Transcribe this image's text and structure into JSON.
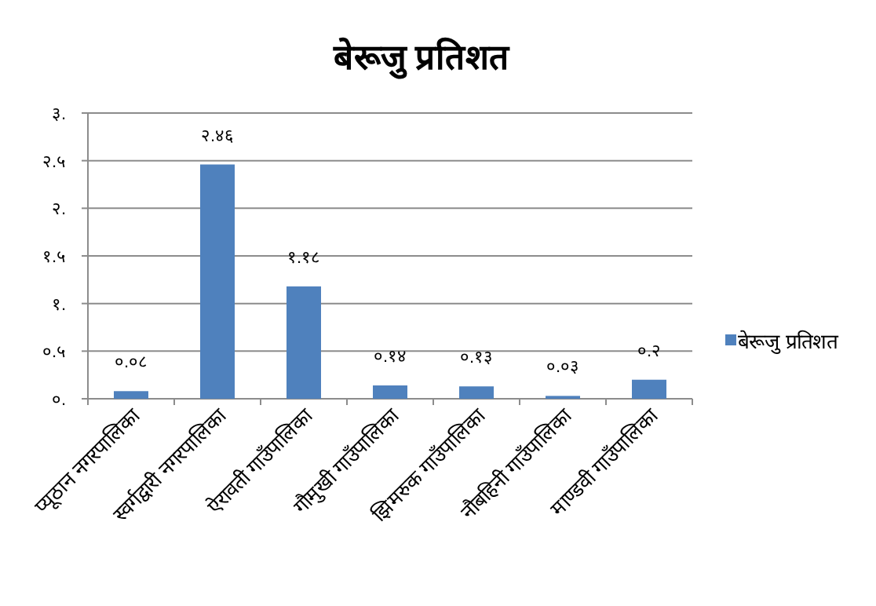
{
  "chart_data": {
    "type": "bar",
    "title": "बेरूजु प्रतिशत",
    "categories": [
      "प्यूठान नगरपालिका",
      "स्वर्गद्वारी नगरपालिका",
      "ऐरावती गाउँपालिका",
      "गौमुखी गाउँपालिका",
      "झिमरुक गाउँपालिका",
      "नौबहिनी गाउँपालिका",
      "माण्डवी गाउँपालिका"
    ],
    "series": [
      {
        "name": "बेरूजु प्रतिशत",
        "color": "#4f81bd",
        "values": [
          0.08,
          2.46,
          1.18,
          0.14,
          0.13,
          0.03,
          0.2
        ],
        "value_labels": [
          "०.०८",
          "२.४६",
          "१.१८",
          "०.१४",
          "०.१३",
          "०.०३",
          "०.२"
        ]
      }
    ],
    "ylim": [
      0,
      3
    ],
    "yticks": [
      {
        "value": 0,
        "label": "०."
      },
      {
        "value": 0.5,
        "label": "०.५"
      },
      {
        "value": 1,
        "label": "१."
      },
      {
        "value": 1.5,
        "label": "१.५"
      },
      {
        "value": 2,
        "label": "२."
      },
      {
        "value": 2.5,
        "label": "२.५"
      },
      {
        "value": 3,
        "label": "३."
      }
    ],
    "grid": "y",
    "legend": "right"
  }
}
